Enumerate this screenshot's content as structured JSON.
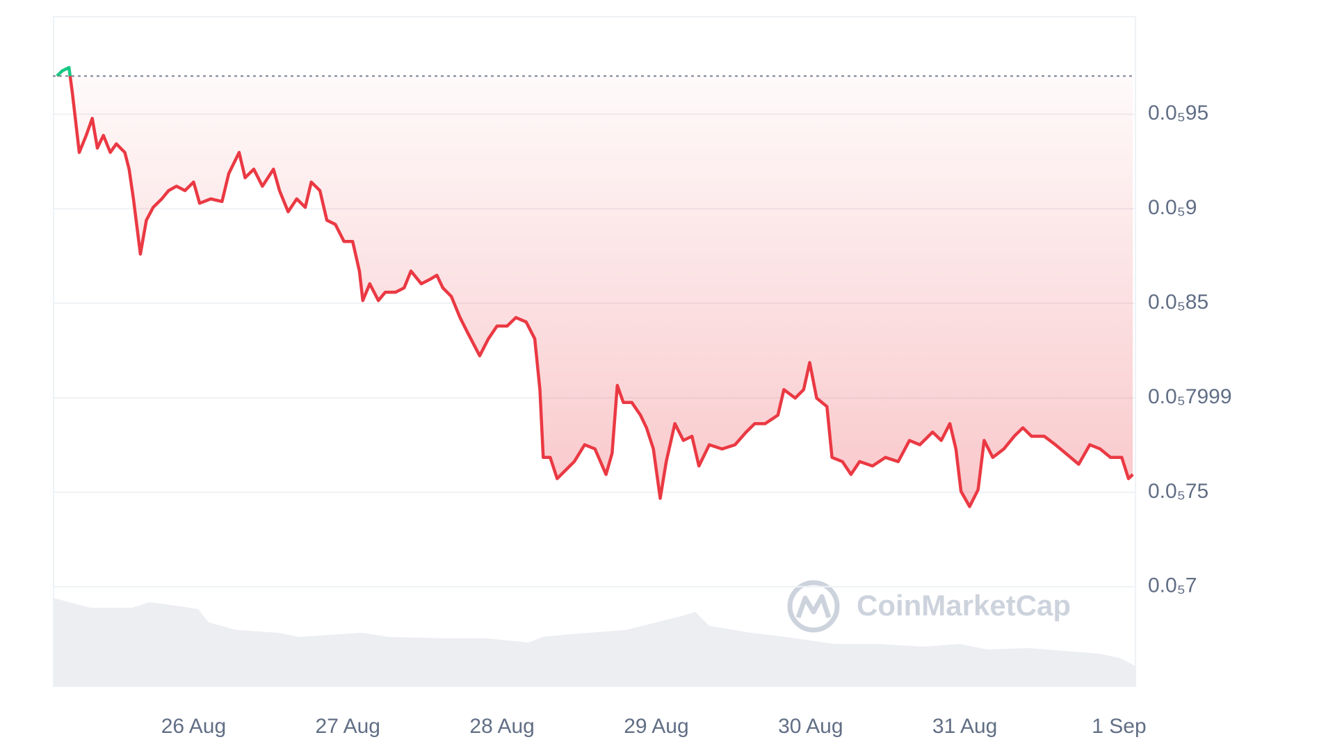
{
  "chart_data": {
    "type": "line",
    "watermark": "CoinMarketCap",
    "x": [
      0.114,
      0.148,
      0.192,
      0.214,
      0.259,
      0.304,
      0.343,
      0.376,
      0.415,
      0.46,
      0.499,
      0.554,
      0.582,
      0.61,
      0.655,
      0.694,
      0.738,
      0.794,
      0.838,
      0.889,
      0.944,
      1.0,
      1.039,
      1.111,
      1.184,
      1.228,
      1.295,
      1.334,
      1.39,
      1.446,
      1.518,
      1.557,
      1.613,
      1.669,
      1.724,
      1.763,
      1.819,
      1.864,
      1.919,
      1.975,
      2.031,
      2.075,
      2.097,
      2.142,
      2.198,
      2.242,
      2.309,
      2.365,
      2.409,
      2.476,
      2.532,
      2.577,
      2.616,
      2.671,
      2.727,
      2.783,
      2.855,
      2.911,
      2.967,
      3.033,
      3.089,
      3.156,
      3.212,
      3.245,
      3.267,
      3.312,
      3.357,
      3.412,
      3.468,
      3.535,
      3.602,
      3.674,
      3.713,
      3.747,
      3.786,
      3.841,
      3.897,
      3.936,
      3.981,
      4.025,
      4.064,
      4.12,
      4.175,
      4.231,
      4.276,
      4.343,
      4.426,
      4.51,
      4.582,
      4.638,
      4.705,
      4.788,
      4.827,
      4.9,
      4.955,
      4.994,
      5.039,
      5.106,
      5.139,
      5.206,
      5.262,
      5.318,
      5.401,
      5.485,
      5.568,
      5.641,
      5.708,
      5.791,
      5.847,
      5.903,
      5.942,
      5.975,
      6.031,
      6.086,
      6.125,
      6.181,
      6.253,
      6.32,
      6.376,
      6.432,
      6.515,
      6.587,
      6.654,
      6.738,
      6.81,
      6.877,
      6.944,
      7.017,
      7.061,
      7.089
    ],
    "series": [
      {
        "color": "#ea3943",
        "up_color": "#16c784",
        "values": [
          9.702e-06,
          9.729e-06,
          9.747e-06,
          9.612e-06,
          9.298e-06,
          9.388e-06,
          9.478e-06,
          9.321e-06,
          9.388e-06,
          9.298e-06,
          9.343e-06,
          9.298e-06,
          9.209e-06,
          9.052e-06,
          8.76e-06,
          8.939e-06,
          9.007e-06,
          9.052e-06,
          9.096e-06,
          9.119e-06,
          9.096e-06,
          9.141e-06,
          9.029e-06,
          9.052e-06,
          9.038e-06,
          9.186e-06,
          9.298e-06,
          9.164e-06,
          9.209e-06,
          9.119e-06,
          9.209e-06,
          9.096e-06,
          8.984e-06,
          9.052e-06,
          9.007e-06,
          9.141e-06,
          9.096e-06,
          8.939e-06,
          8.917e-06,
          8.827e-06,
          8.827e-06,
          8.67e-06,
          8.514e-06,
          8.603e-06,
          8.514e-06,
          8.558e-06,
          8.558e-06,
          8.581e-06,
          8.67e-06,
          8.603e-06,
          8.626e-06,
          8.648e-06,
          8.581e-06,
          8.536e-06,
          8.424e-06,
          8.334e-06,
          8.222e-06,
          8.312e-06,
          8.379e-06,
          8.379e-06,
          8.424e-06,
          8.401e-06,
          8.312e-06,
          8.043e-06,
          7.684e-06,
          7.684e-06,
          7.572e-06,
          7.617e-06,
          7.662e-06,
          7.751e-06,
          7.729e-06,
          7.594e-06,
          7.706e-06,
          8.065e-06,
          7.975e-06,
          7.975e-06,
          7.908e-06,
          7.841e-06,
          7.729e-06,
          7.468e-06,
          7.662e-06,
          7.863e-06,
          7.774e-06,
          7.796e-06,
          7.639e-06,
          7.751e-06,
          7.729e-06,
          7.751e-06,
          7.818e-06,
          7.863e-06,
          7.863e-06,
          7.908e-06,
          8.043e-06,
          7.998e-06,
          8.043e-06,
          8.186e-06,
          7.998e-06,
          7.953e-06,
          7.684e-06,
          7.662e-06,
          7.594e-06,
          7.662e-06,
          7.639e-06,
          7.684e-06,
          7.662e-06,
          7.774e-06,
          7.751e-06,
          7.818e-06,
          7.774e-06,
          7.863e-06,
          7.729e-06,
          7.505e-06,
          7.424e-06,
          7.514e-06,
          7.774e-06,
          7.684e-06,
          7.729e-06,
          7.796e-06,
          7.841e-06,
          7.796e-06,
          7.796e-06,
          7.751e-06,
          7.706e-06,
          7.648e-06,
          7.751e-06,
          7.729e-06,
          7.684e-06,
          7.684e-06,
          7.572e-06,
          7.594e-06
        ]
      }
    ],
    "xlim": [
      0.092,
      7.106
    ],
    "xticks": [
      {
        "value": 1,
        "label": "26 Aug"
      },
      {
        "value": 2,
        "label": "27 Aug"
      },
      {
        "value": 3,
        "label": "28 Aug"
      },
      {
        "value": 4,
        "label": "29 Aug"
      },
      {
        "value": 5,
        "label": "30 Aug"
      },
      {
        "value": 6,
        "label": "31 Aug"
      },
      {
        "value": 7,
        "label": "1 Sep"
      }
    ],
    "ylim": [
      6.473e-06,
      1.0016e-05
    ],
    "yticks": [
      {
        "value": 9.5e-06,
        "label": "0.0₅95"
      },
      {
        "value": 9e-06,
        "label": "0.0₅9"
      },
      {
        "value": 8.5e-06,
        "label": "0.0₅85"
      },
      {
        "value": 7.999e-06,
        "label": "0.0₅7999"
      },
      {
        "value": 7.5e-06,
        "label": "0.0₅75"
      },
      {
        "value": 7e-06,
        "label": "0.0₅7"
      }
    ],
    "grid": true
  }
}
